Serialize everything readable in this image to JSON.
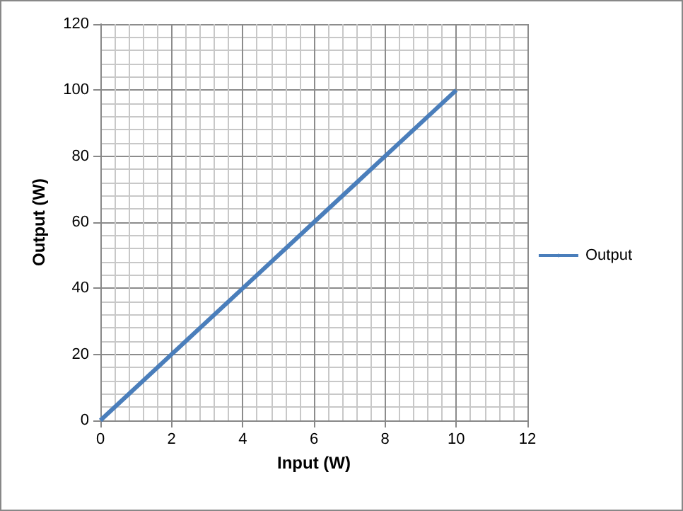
{
  "chart_data": {
    "type": "line",
    "xlabel": "Input (W)",
    "ylabel": "Output (W)",
    "x": [
      0,
      2,
      4,
      6,
      8,
      10
    ],
    "series": [
      {
        "name": "Output",
        "color": "#4a7ebb",
        "values": [
          0,
          20,
          40,
          60,
          80,
          100
        ]
      }
    ],
    "xlim": [
      0,
      12
    ],
    "xticks": [
      0,
      2,
      4,
      6,
      8,
      10,
      12
    ],
    "ylim": [
      0,
      120
    ],
    "yticks": [
      0,
      20,
      40,
      60,
      80,
      100,
      120
    ],
    "grid": true,
    "legend": "right",
    "marker": "none",
    "line_style": "solid"
  }
}
